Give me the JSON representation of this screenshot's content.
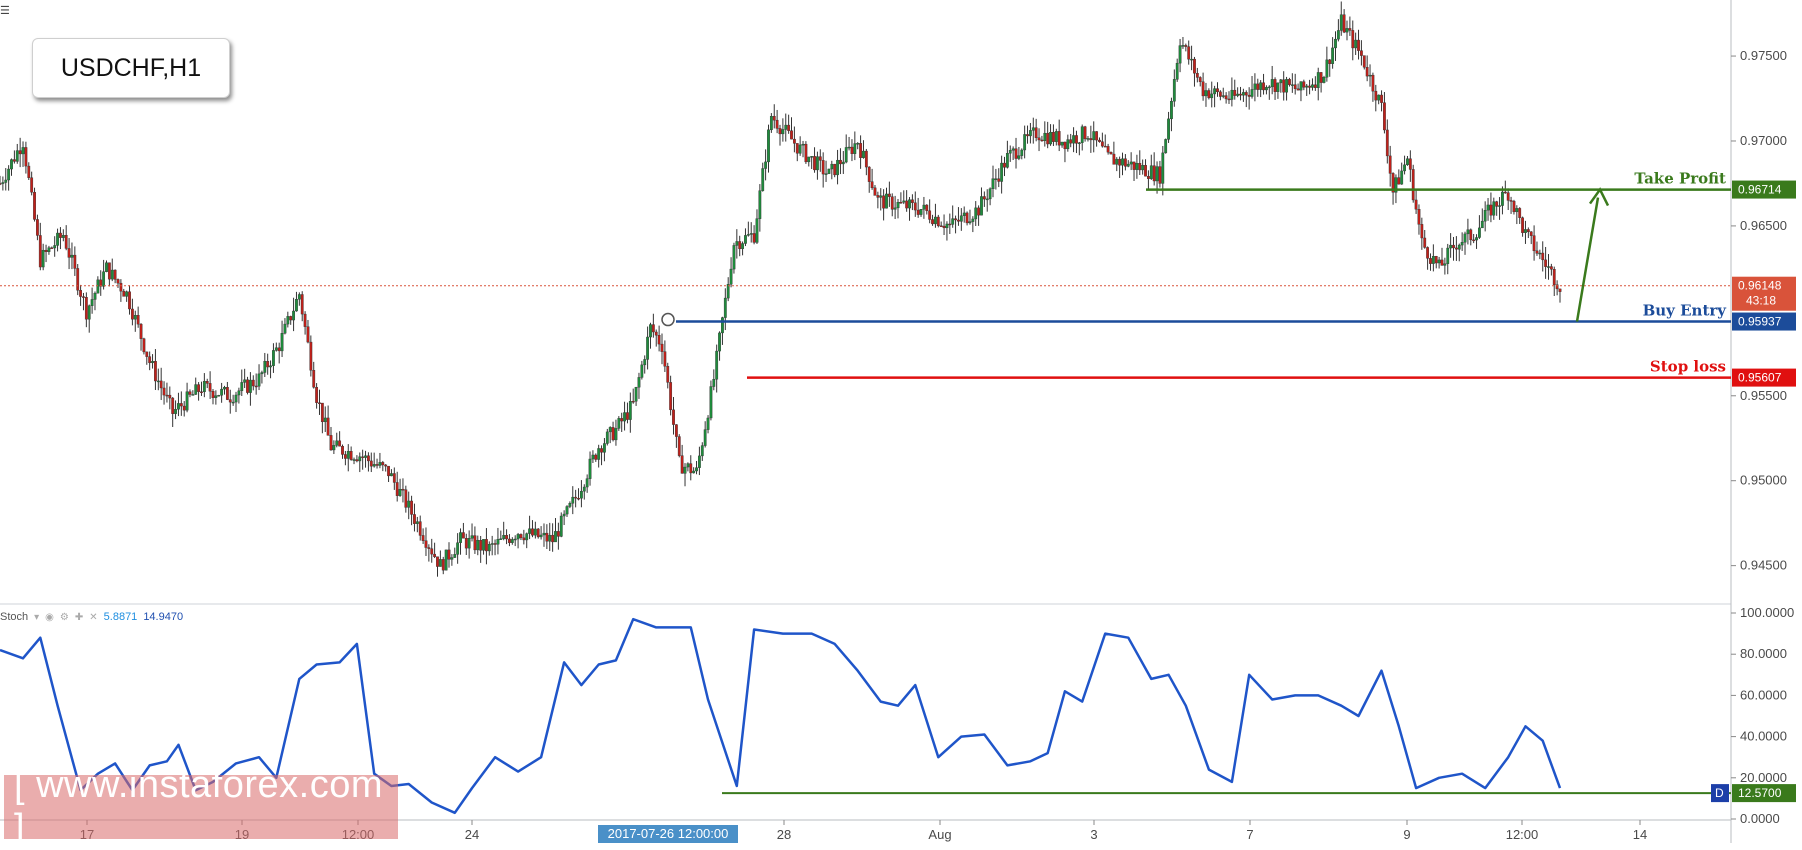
{
  "title": "USDCHF,H1",
  "watermark": "[ www.instaforex.com ]",
  "cursor_date": "2017-07-26 12:00:00",
  "stoch_header": {
    "name": "Stoch",
    "k": "5.8871",
    "d": "14.9470"
  },
  "colors": {
    "candle_up": "#1e8c3c",
    "candle_down": "#c0201a",
    "stoch": "#1f55c9",
    "take_profit": "#3a7a1c",
    "buy_entry": "#1c4c9a",
    "stop_loss": "#e01010",
    "current": "#d9533a"
  },
  "chart_data": [
    {
      "type": "candlestick",
      "title": "USDCHF,H1",
      "ylim": [
        0.9428,
        0.9783
      ],
      "price_ticks": [
        "0.97500",
        "0.97000",
        "0.96500",
        "0.95500",
        "0.95000",
        "0.94500"
      ],
      "x_ticks": [
        "17",
        "19",
        "12:00",
        "24",
        "28",
        "Aug",
        "3",
        "7",
        "9",
        "12:00",
        "14"
      ],
      "levels": [
        {
          "name": "take_profit",
          "label": "Take Profit",
          "value": "0.96714"
        },
        {
          "name": "buy_entry",
          "label": "Buy Entry",
          "value": "0.95937"
        },
        {
          "name": "stop_loss",
          "label": "Stop loss",
          "value": "0.95607"
        },
        {
          "name": "current",
          "label": "",
          "value": "0.96148",
          "sub": "43:18"
        }
      ],
      "close_path": [
        [
          0,
          0.9675
        ],
        [
          8,
          0.97
        ],
        [
          14,
          0.963
        ],
        [
          22,
          0.9645
        ],
        [
          30,
          0.96
        ],
        [
          37,
          0.9625
        ],
        [
          44,
          0.961
        ],
        [
          52,
          0.957
        ],
        [
          60,
          0.954
        ],
        [
          70,
          0.9555
        ],
        [
          80,
          0.955
        ],
        [
          90,
          0.956
        ],
        [
          97,
          0.958
        ],
        [
          104,
          0.961
        ],
        [
          110,
          0.955
        ],
        [
          115,
          0.952
        ],
        [
          125,
          0.9515
        ],
        [
          135,
          0.9505
        ],
        [
          145,
          0.9475
        ],
        [
          153,
          0.945
        ],
        [
          160,
          0.9465
        ],
        [
          170,
          0.946
        ],
        [
          180,
          0.947
        ],
        [
          192,
          0.9465
        ],
        [
          200,
          0.949
        ],
        [
          208,
          0.952
        ],
        [
          214,
          0.953
        ],
        [
          220,
          0.9545
        ],
        [
          226,
          0.959
        ],
        [
          230,
          0.958
        ],
        [
          236,
          0.951
        ],
        [
          242,
          0.9505
        ],
        [
          248,
          0.956
        ],
        [
          255,
          0.964
        ],
        [
          262,
          0.9645
        ],
        [
          268,
          0.9715
        ],
        [
          278,
          0.9695
        ],
        [
          288,
          0.968
        ],
        [
          298,
          0.97
        ],
        [
          305,
          0.9665
        ],
        [
          320,
          0.966
        ],
        [
          330,
          0.965
        ],
        [
          340,
          0.966
        ],
        [
          350,
          0.969
        ],
        [
          360,
          0.9705
        ],
        [
          370,
          0.97
        ],
        [
          378,
          0.9705
        ],
        [
          385,
          0.969
        ],
        [
          395,
          0.9685
        ],
        [
          403,
          0.968
        ],
        [
          410,
          0.976
        ],
        [
          418,
          0.973
        ],
        [
          428,
          0.9725
        ],
        [
          440,
          0.9735
        ],
        [
          452,
          0.973
        ],
        [
          460,
          0.974
        ],
        [
          466,
          0.977
        ],
        [
          473,
          0.975
        ],
        [
          480,
          0.972
        ],
        [
          484,
          0.967
        ],
        [
          489,
          0.969
        ],
        [
          494,
          0.964
        ],
        [
          500,
          0.9625
        ],
        [
          506,
          0.964
        ],
        [
          512,
          0.9645
        ],
        [
          518,
          0.966
        ],
        [
          524,
          0.967
        ],
        [
          530,
          0.9645
        ],
        [
          536,
          0.963
        ],
        [
          542,
          0.9615
        ]
      ],
      "path_x_range": [
        0,
        542
      ]
    },
    {
      "type": "line",
      "title": "Stoch",
      "ylim": [
        0,
        100
      ],
      "y_ticks": [
        "100.0000",
        "80.0000",
        "60.0000",
        "40.0000",
        "20.0000",
        "0.0000"
      ],
      "level": {
        "value": "12.5700",
        "badge": "D"
      },
      "series": [
        {
          "values": [
            [
              0,
              82
            ],
            [
              8,
              78
            ],
            [
              14,
              88
            ],
            [
              20,
              55
            ],
            [
              28,
              14
            ],
            [
              34,
              22
            ],
            [
              40,
              27
            ],
            [
              46,
              14
            ],
            [
              52,
              26
            ],
            [
              58,
              28
            ],
            [
              62,
              36
            ],
            [
              68,
              14
            ],
            [
              74,
              18
            ],
            [
              82,
              27
            ],
            [
              90,
              30
            ],
            [
              96,
              20
            ],
            [
              104,
              68
            ],
            [
              110,
              75
            ],
            [
              118,
              76
            ],
            [
              124,
              85
            ],
            [
              130,
              22
            ],
            [
              136,
              16
            ],
            [
              142,
              17
            ],
            [
              150,
              8
            ],
            [
              158,
              3
            ],
            [
              164,
              15
            ],
            [
              172,
              30
            ],
            [
              180,
              23
            ],
            [
              188,
              30
            ],
            [
              196,
              76
            ],
            [
              202,
              65
            ],
            [
              208,
              75
            ],
            [
              214,
              77
            ],
            [
              220,
              97
            ],
            [
              228,
              93
            ],
            [
              240,
              93
            ],
            [
              246,
              58
            ],
            [
              256,
              16
            ],
            [
              262,
              92
            ],
            [
              272,
              90
            ],
            [
              282,
              90
            ],
            [
              290,
              85
            ],
            [
              298,
              72
            ],
            [
              306,
              57
            ],
            [
              312,
              55
            ],
            [
              318,
              65
            ],
            [
              326,
              30
            ],
            [
              334,
              40
            ],
            [
              342,
              41
            ],
            [
              350,
              26
            ],
            [
              358,
              28
            ],
            [
              364,
              32
            ],
            [
              370,
              62
            ],
            [
              376,
              57
            ],
            [
              384,
              90
            ],
            [
              392,
              88
            ],
            [
              400,
              68
            ],
            [
              406,
              70
            ],
            [
              412,
              55
            ],
            [
              420,
              24
            ],
            [
              428,
              18
            ],
            [
              434,
              70
            ],
            [
              442,
              58
            ],
            [
              450,
              60
            ],
            [
              458,
              60
            ],
            [
              466,
              55
            ],
            [
              472,
              50
            ],
            [
              480,
              72
            ],
            [
              486,
              45
            ],
            [
              492,
              15
            ],
            [
              500,
              20
            ],
            [
              508,
              22
            ],
            [
              516,
              15
            ],
            [
              524,
              30
            ],
            [
              530,
              45
            ],
            [
              536,
              38
            ],
            [
              542,
              15
            ]
          ]
        }
      ]
    }
  ]
}
